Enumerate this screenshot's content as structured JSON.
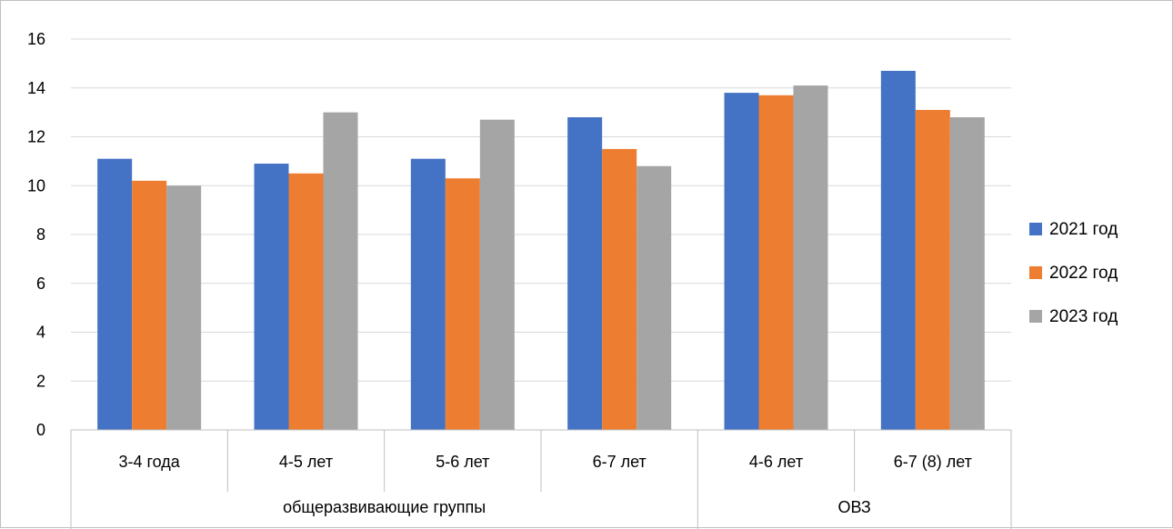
{
  "chart_data": {
    "type": "bar",
    "title": "",
    "xlabel": "",
    "ylabel": "",
    "ylim": [
      0,
      16
    ],
    "yticks": [
      0,
      2,
      4,
      6,
      8,
      10,
      12,
      14,
      16
    ],
    "ytick_labels": [
      "0",
      "2",
      "4",
      "6",
      "8",
      "10",
      "12",
      "14",
      "16"
    ],
    "grid": true,
    "legend_position": "right",
    "categories": [
      "3-4 года",
      "4-5 лет",
      "5-6 лет",
      "6-7 лет",
      "4-6 лет",
      "6-7 (8) лет"
    ],
    "groups": [
      {
        "label": "общеразвивающие группы",
        "categories": [
          "3-4 года",
          "4-5 лет",
          "5-6 лет",
          "6-7 лет"
        ]
      },
      {
        "label": "ОВЗ",
        "categories": [
          "4-6 лет",
          "6-7 (8) лет"
        ]
      }
    ],
    "series": [
      {
        "name": "2021 год",
        "color": "#4472C4",
        "values": [
          11.1,
          10.9,
          11.1,
          12.8,
          13.8,
          14.7
        ]
      },
      {
        "name": "2022 год",
        "color": "#ED7D31",
        "values": [
          10.2,
          10.5,
          10.3,
          11.5,
          13.7,
          13.1
        ]
      },
      {
        "name": "2023 год",
        "color": "#A5A5A5",
        "values": [
          10.0,
          13.0,
          12.7,
          10.8,
          14.1,
          12.8
        ]
      }
    ]
  }
}
